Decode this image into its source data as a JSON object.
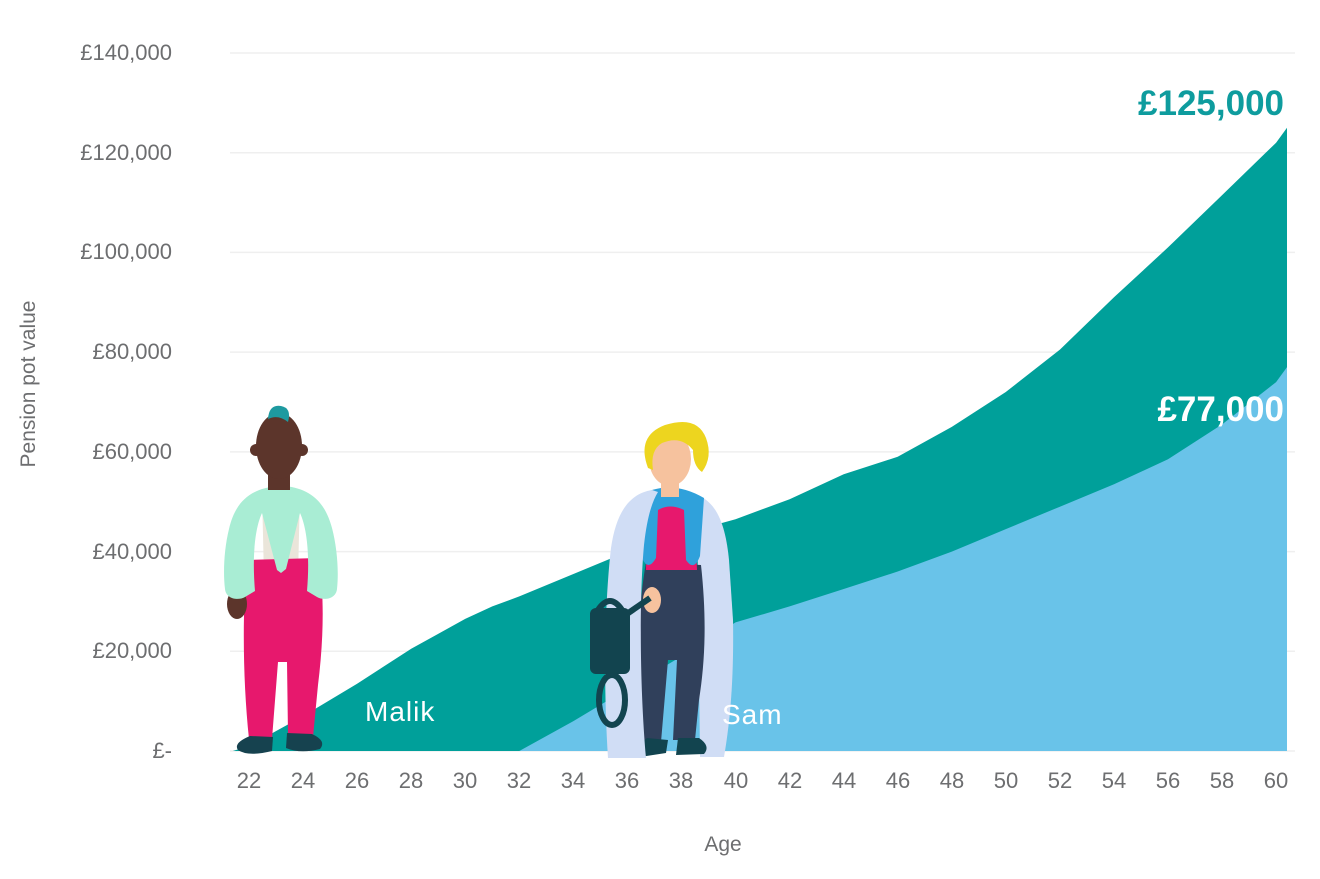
{
  "page": {
    "background": "#FFFFFF"
  },
  "colors": {
    "teal_area": "#00A09A",
    "blue_area": "#69C3E9",
    "teal_label": "#0E9C9E",
    "white_label": "#FFFFFF",
    "axis_text": "#6D6E70",
    "gridline": "#EFEFEF"
  },
  "chart_data": {
    "type": "area",
    "title": "",
    "xlabel": "Age",
    "ylabel": "Pension pot value",
    "grid": "horizontal",
    "legend_position": "none",
    "x_axis": {
      "tick_values": [
        22,
        24,
        26,
        28,
        30,
        32,
        34,
        36,
        38,
        40,
        42,
        44,
        46,
        48,
        50,
        52,
        54,
        56,
        58,
        60
      ],
      "range": [
        22,
        60
      ]
    },
    "y_axis": {
      "tick_values": [
        0,
        20000,
        40000,
        60000,
        80000,
        100000,
        120000,
        140000
      ],
      "tick_labels": [
        "£-",
        "£20,000",
        "£40,000",
        "£60,000",
        "£80,000",
        "£100,000",
        "£120,000",
        "£140,000"
      ],
      "range": [
        0,
        140000
      ]
    },
    "series": [
      {
        "name": "Malik",
        "label": "Malik",
        "color": "#00A09A",
        "end_value_label": "£125,000",
        "start_age": 22,
        "final_value": 125000,
        "points": [
          [
            21.4,
            0
          ],
          [
            22,
            1000
          ],
          [
            24,
            7000
          ],
          [
            26,
            13500
          ],
          [
            28,
            20500
          ],
          [
            30,
            26500
          ],
          [
            31,
            29000
          ],
          [
            32,
            31000
          ],
          [
            34,
            35500
          ],
          [
            36,
            40000
          ],
          [
            38,
            43500
          ],
          [
            40,
            46500
          ],
          [
            42,
            50500
          ],
          [
            44,
            55500
          ],
          [
            46,
            59000
          ],
          [
            48,
            65000
          ],
          [
            50,
            72000
          ],
          [
            52,
            80500
          ],
          [
            54,
            91000
          ],
          [
            56,
            101000
          ],
          [
            58,
            111500
          ],
          [
            60,
            122000
          ],
          [
            60.4,
            125000
          ]
        ]
      },
      {
        "name": "Sam",
        "label": "Sam",
        "color": "#69C3E9",
        "end_value_label": "£77,000",
        "start_age": 32,
        "final_value": 77000,
        "points": [
          [
            32,
            0
          ],
          [
            34,
            6000
          ],
          [
            36,
            12500
          ],
          [
            38,
            19000
          ],
          [
            40,
            25800
          ],
          [
            42,
            29000
          ],
          [
            44,
            32500
          ],
          [
            46,
            36000
          ],
          [
            48,
            40000
          ],
          [
            50,
            44500
          ],
          [
            52,
            49000
          ],
          [
            54,
            53500
          ],
          [
            56,
            58500
          ],
          [
            58,
            65500
          ],
          [
            60,
            74000
          ],
          [
            60.4,
            77000
          ]
        ]
      }
    ]
  }
}
